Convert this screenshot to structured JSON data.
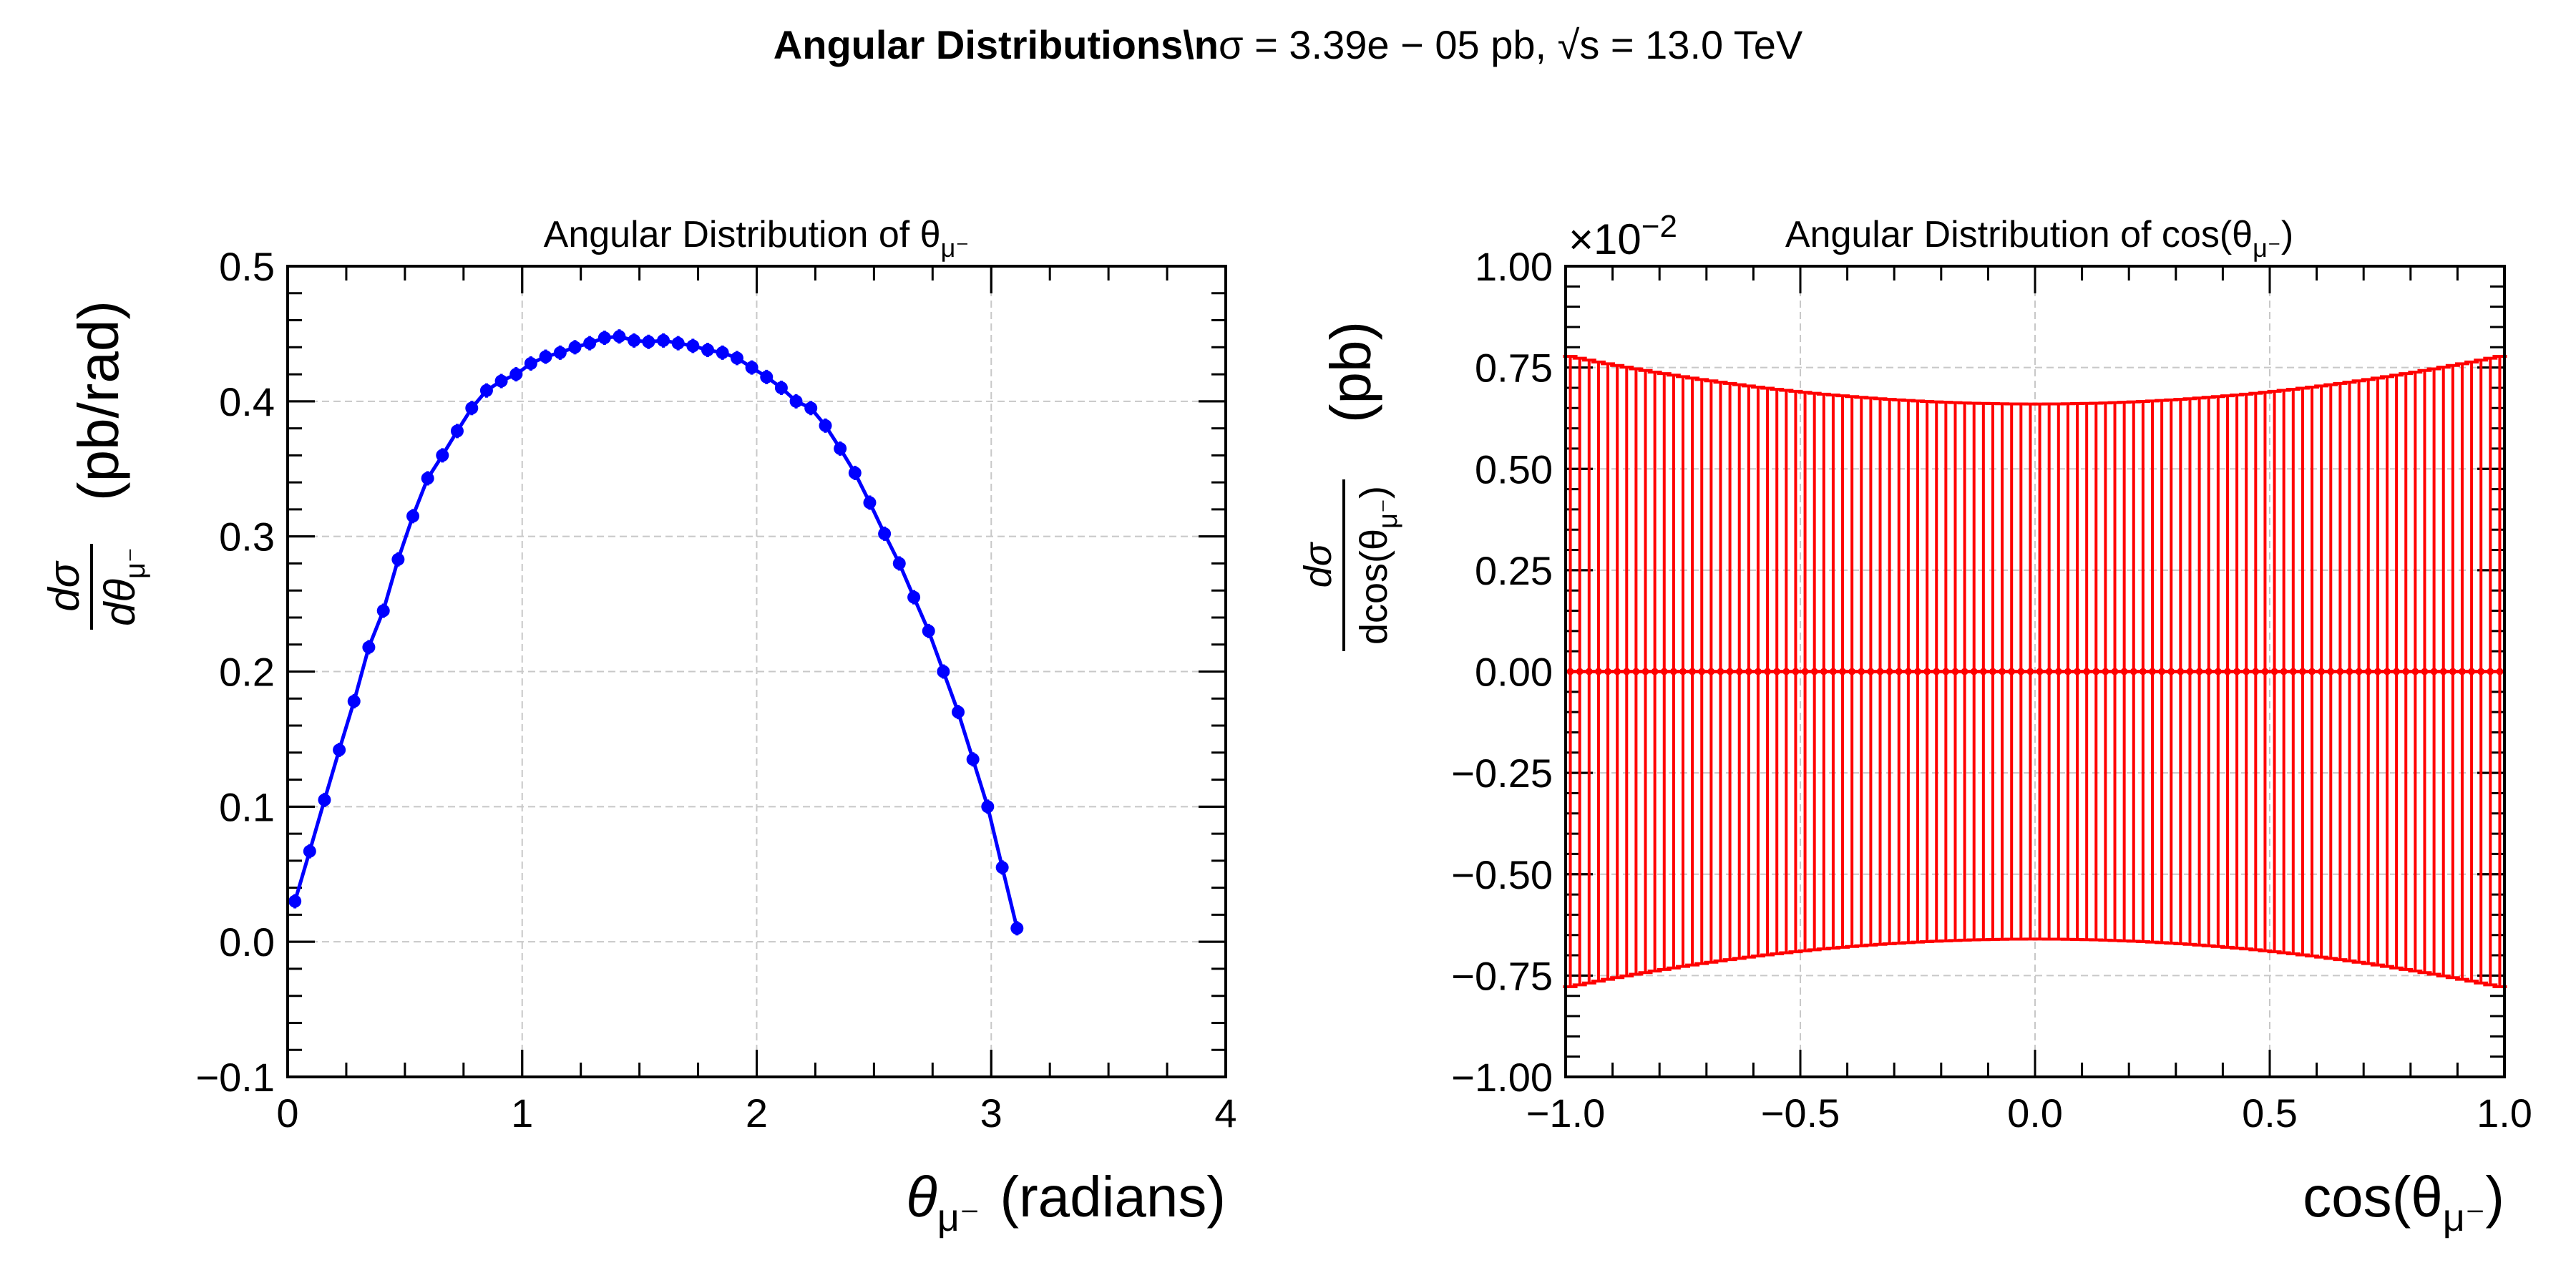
{
  "figure": {
    "suptitle_bold": "Angular Distributions\\n",
    "suptitle_rest": "σ = 3.39e − 05 pb, √s = 13.0 TeV"
  },
  "chart_data": [
    {
      "type": "line",
      "title": "Angular Distribution of θμ⁻",
      "title_main": "Angular Distribution of θ",
      "title_sub": "μ⁻",
      "xlabel": "θμ⁻ (radians)",
      "xlabel_sym": "θ",
      "xlabel_sub": "μ⁻",
      "xlabel_rest": "(radians)",
      "ylabel": "dσ/dθμ⁻ (pb/rad)",
      "ylabel_num": "dσ",
      "ylabel_den": "dθ",
      "ylabel_den_sub": "μ⁻",
      "ylabel_unit": "(pb/rad)",
      "xlim": [
        0,
        4
      ],
      "ylim": [
        -0.1,
        0.5
      ],
      "xticks": [
        "0",
        "1",
        "2",
        "3",
        "4"
      ],
      "yticks": [
        "−0.1",
        "0.0",
        "0.1",
        "0.2",
        "0.3",
        "0.4",
        "0.5"
      ],
      "grid": true,
      "color": "#0000ff",
      "series": [
        {
          "x": [
            0.031,
            0.094,
            0.157,
            0.22,
            0.283,
            0.346,
            0.408,
            0.471,
            0.534,
            0.597,
            0.66,
            0.723,
            0.785,
            0.848,
            0.911,
            0.974,
            1.037,
            1.1,
            1.162,
            1.225,
            1.288,
            1.351,
            1.414,
            1.477,
            1.539,
            1.602,
            1.665,
            1.728,
            1.791,
            1.854,
            1.916,
            1.979,
            2.042,
            2.105,
            2.168,
            2.231,
            2.293,
            2.356,
            2.419,
            2.482,
            2.545,
            2.608,
            2.67,
            2.733,
            2.796,
            2.859,
            2.922,
            2.985,
            3.047,
            3.11
          ],
          "y": [
            0.03,
            0.067,
            0.105,
            0.142,
            0.178,
            0.218,
            0.245,
            0.283,
            0.315,
            0.343,
            0.36,
            0.378,
            0.395,
            0.408,
            0.415,
            0.42,
            0.428,
            0.433,
            0.436,
            0.44,
            0.443,
            0.447,
            0.448,
            0.445,
            0.444,
            0.445,
            0.443,
            0.441,
            0.438,
            0.436,
            0.432,
            0.425,
            0.418,
            0.41,
            0.4,
            0.395,
            0.382,
            0.365,
            0.347,
            0.325,
            0.302,
            0.28,
            0.255,
            0.23,
            0.2,
            0.17,
            0.135,
            0.1,
            0.055,
            0.01
          ]
        }
      ]
    },
    {
      "type": "scatter",
      "title": "Angular Distribution of cos(θμ⁻)",
      "title_main": "Angular Distribution of cos(θ",
      "title_sub": "μ⁻",
      "title_end": ")",
      "xlabel": "cos(θμ⁻)",
      "xlabel_main": "cos(θ",
      "xlabel_sub": "μ⁻",
      "xlabel_end": ")",
      "ylabel": "dσ/dcos(θμ⁻) (pb)",
      "ylabel_num": "dσ",
      "ylabel_den": "dcos(θ",
      "ylabel_den_sub": "μ⁻",
      "ylabel_den_end": ")",
      "ylabel_unit": "(pb)",
      "offset_text": "×10⁻²",
      "offset_main": "×10",
      "offset_exp": "−2",
      "xlim": [
        -1,
        1
      ],
      "ylim": [
        -1.0,
        1.0
      ],
      "xticks": [
        "−1.0",
        "−0.5",
        "0.0",
        "0.5",
        "1.0"
      ],
      "yticks": [
        "−1.00",
        "−0.75",
        "−0.50",
        "−0.25",
        "0.00",
        "0.25",
        "0.50",
        "0.75",
        "1.00"
      ],
      "grid": true,
      "color": "#ff0000",
      "series": [
        {
          "bins": 100,
          "values": 0.0,
          "error_fit": {
            "center": 0.66,
            "edge": 0.78,
            "note": "error bar half-width ~0.66 at x=0 rising to ~0.78 at x=±1 (×10⁻²)"
          }
        }
      ]
    }
  ]
}
